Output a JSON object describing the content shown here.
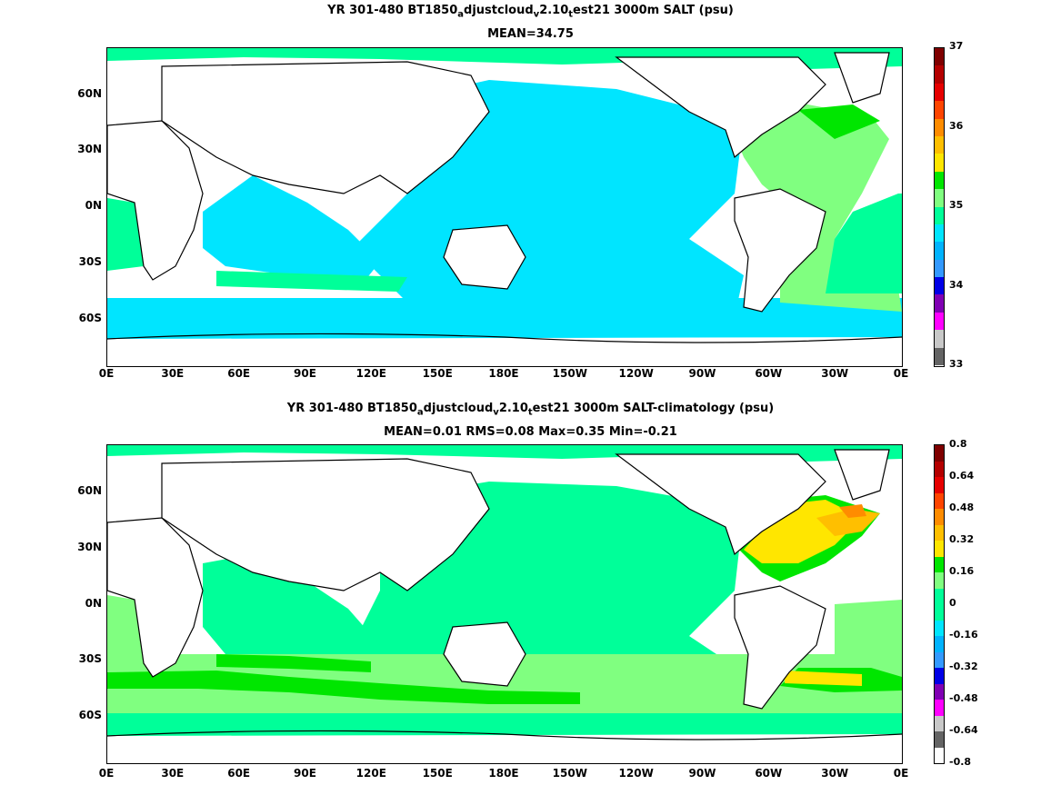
{
  "top_panel": {
    "title_main": "YR 301-480 BT1850",
    "title_sub1": "a",
    "title_mid": "djustcloud",
    "title_sub2": "v",
    "title_mid2": "2.10",
    "title_sub3": "t",
    "title_end": "est21 3000m SALT (psu)",
    "subtitle": "MEAN=34.75",
    "colorbar_labels": [
      "37",
      "36",
      "35",
      "34",
      "33"
    ],
    "colors": [
      "#7f0000",
      "#b40000",
      "#e60000",
      "#ff4500",
      "#ff8c00",
      "#ffbf00",
      "#ffe600",
      "#00e600",
      "#80ff80",
      "#00ff99",
      "#00e5ff",
      "#00b3ff",
      "#3399ff",
      "#0000e6",
      "#8000b3",
      "#ff00ff",
      "#c8c8c8",
      "#646464"
    ]
  },
  "bottom_panel": {
    "title_main": "YR 301-480 BT1850",
    "title_sub1": "a",
    "title_mid": "djustcloud",
    "title_sub2": "v",
    "title_mid2": "2.10",
    "title_sub3": "t",
    "title_end": "est21 3000m SALT-climatology (psu)",
    "subtitle": "MEAN=0.01   RMS=0.08   Max=0.35   Min=-0.21",
    "colorbar_labels": [
      "0.8",
      "0.64",
      "0.48",
      "0.32",
      "0.16",
      "0",
      "-0.16",
      "-0.32",
      "-0.48",
      "-0.64",
      "-0.8"
    ],
    "colors": [
      "#7f0000",
      "#b40000",
      "#e60000",
      "#ff4500",
      "#ff8c00",
      "#ffbf00",
      "#ffe600",
      "#00e600",
      "#80ff80",
      "#00ff99",
      "#00e5ff",
      "#00b3ff",
      "#3399ff",
      "#0000e6",
      "#8000b3",
      "#ff00ff",
      "#c8c8c8",
      "#646464"
    ]
  },
  "x_ticks": [
    "0E",
    "30E",
    "60E",
    "90E",
    "120E",
    "150E",
    "180E",
    "150W",
    "120W",
    "90W",
    "60W",
    "30W",
    "0E"
  ],
  "y_ticks": [
    "60N",
    "30N",
    "0N",
    "30S",
    "60S"
  ]
}
